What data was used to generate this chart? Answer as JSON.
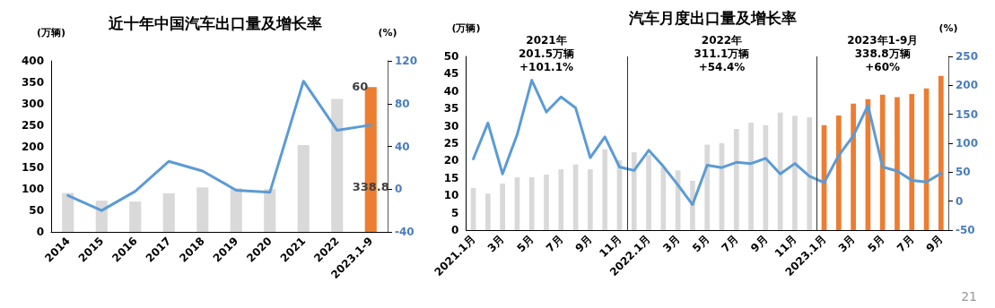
{
  "chart_data": [
    {
      "type": "bar",
      "title": "近十年中国汽车出口量及增长率",
      "ylabel": "(万辆)",
      "y2label": "(%)",
      "categories": [
        "2014",
        "2015",
        "2016",
        "2017",
        "2018",
        "2019",
        "2020",
        "2021",
        "2022",
        "2023.1-9"
      ],
      "series": [
        {
          "colors": [
            "#d9d9d9",
            "#d9d9d9",
            "#d9d9d9",
            "#d9d9d9",
            "#d9d9d9",
            "#d9d9d9",
            "#d9d9d9",
            "#d9d9d9",
            "#d9d9d9",
            "#ed7d31"
          ],
          "values": [
            91,
            73,
            71,
            90,
            104,
            102,
            100,
            203,
            311,
            338.8
          ],
          "value_labels": [
            null,
            null,
            null,
            null,
            null,
            null,
            null,
            null,
            null,
            "338.8"
          ]
        },
        {
          "type": "line",
          "axis": "y2",
          "color": "#5b9bd5",
          "values": [
            -6,
            -20,
            -2,
            26,
            17,
            -1,
            -3,
            101,
            55,
            60
          ],
          "value_labels": [
            null,
            null,
            null,
            null,
            null,
            null,
            null,
            null,
            null,
            "60"
          ]
        }
      ],
      "ylim": [
        0,
        400
      ],
      "yticks": [
        0,
        50,
        100,
        150,
        200,
        250,
        300,
        350,
        400
      ],
      "y2lim": [
        -40,
        120
      ],
      "y2ticks": [
        -40,
        0,
        40,
        80,
        120
      ],
      "grid": false,
      "marker": "none"
    },
    {
      "type": "bar",
      "title": "汽车月度出口量及增长率",
      "ylabel": "(万辆)",
      "y2label": "(%)",
      "categories": [
        "2021.1月",
        null,
        "3月",
        null,
        "5月",
        null,
        "7月",
        null,
        "9月",
        null,
        "11月",
        null,
        "2022.1月",
        null,
        "3月",
        null,
        "5月",
        null,
        "7月",
        null,
        "9月",
        null,
        "11月",
        null,
        "2023.1月",
        null,
        "3月",
        null,
        "5月",
        null,
        "7月",
        null,
        "9月"
      ],
      "series": [
        {
          "colors": [
            "#d9d9d9",
            "#d9d9d9",
            "#d9d9d9",
            "#d9d9d9",
            "#d9d9d9",
            "#d9d9d9",
            "#d9d9d9",
            "#d9d9d9",
            "#d9d9d9",
            "#d9d9d9",
            "#d9d9d9",
            "#d9d9d9",
            "#d9d9d9",
            "#d9d9d9",
            "#d9d9d9",
            "#d9d9d9",
            "#d9d9d9",
            "#d9d9d9",
            "#d9d9d9",
            "#d9d9d9",
            "#d9d9d9",
            "#d9d9d9",
            "#d9d9d9",
            "#d9d9d9",
            "#ed7d31",
            "#ed7d31",
            "#ed7d31",
            "#ed7d31",
            "#ed7d31",
            "#ed7d31",
            "#ed7d31",
            "#ed7d31",
            "#ed7d31"
          ],
          "values": [
            12.1,
            10.5,
            13.4,
            15.2,
            15.2,
            16,
            17.5,
            18.9,
            17.5,
            23.3,
            20.1,
            22.4,
            21.6,
            18.1,
            17.2,
            14.2,
            24.6,
            25,
            29.1,
            30.9,
            30.2,
            33.8,
            32.9,
            32.5,
            30.2,
            33,
            36.4,
            37.7,
            39,
            38.3,
            39.2,
            40.8,
            44.4
          ]
        },
        {
          "type": "line",
          "axis": "y2",
          "color": "#5b9bd5",
          "values": [
            73,
            135,
            47,
            115,
            209,
            154,
            180,
            161,
            75,
            111,
            59,
            53,
            88,
            60,
            28,
            -6,
            62,
            58,
            67,
            65,
            74,
            47,
            65,
            43,
            32,
            79,
            113,
            165,
            59,
            52,
            36,
            33,
            48
          ]
        }
      ],
      "ylim": [
        0,
        50
      ],
      "yticks": [
        0,
        5,
        10,
        15,
        20,
        25,
        30,
        35,
        40,
        45,
        50
      ],
      "y2lim": [
        -50,
        250
      ],
      "y2ticks": [
        -50,
        0,
        50,
        100,
        150,
        200,
        250
      ],
      "annotations": [
        "2021年\n201.5万辆\n+101.1%",
        "2022年\n311.1万辆\n+54.4%",
        "2023年1-9月\n338.8万辆\n+60%",
        "21"
      ],
      "grid": false,
      "marker": "none"
    }
  ]
}
